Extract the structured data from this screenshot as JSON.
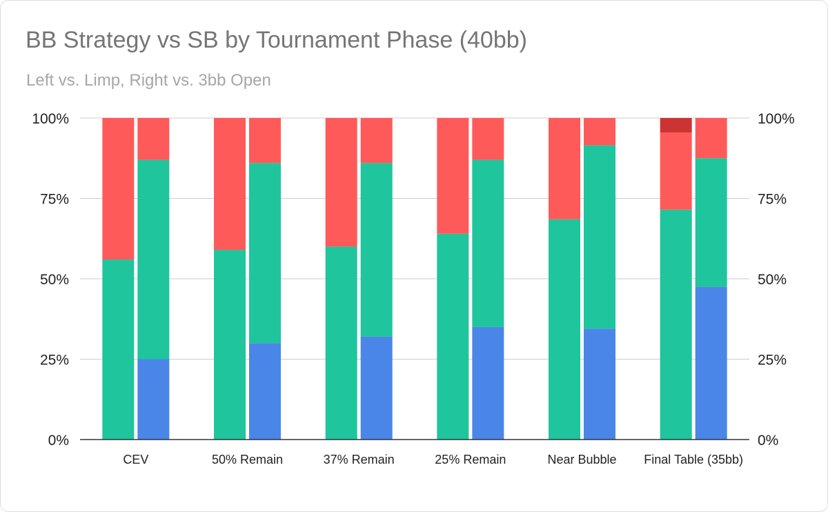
{
  "chart_data": {
    "type": "bar",
    "stacked": true,
    "title": "BB Strategy vs SB by Tournament Phase (40bb)",
    "subtitle": "Left vs. Limp, Right vs. 3bb Open",
    "categories": [
      "CEV",
      "50% Remain",
      "37% Remain",
      "25% Remain",
      "Near Bubble",
      "Final Table (35bb)"
    ],
    "ylim": [
      0,
      100
    ],
    "y_ticks": [
      "0%",
      "25%",
      "50%",
      "75%",
      "100%"
    ],
    "grid": true,
    "legend": "none",
    "colors": {
      "blue": "#4a86e8",
      "green": "#1fc59c",
      "red": "#ff5a5a",
      "darkred": "#cc3333"
    },
    "bars": {
      "left": {
        "stack": [
          {
            "values": [
              0,
              0,
              0,
              0,
              0,
              0
            ],
            "color": "blue"
          },
          {
            "values": [
              56,
              59,
              60,
              64,
              68.5,
              71.5
            ],
            "color": "green"
          },
          {
            "values": [
              44,
              41,
              40,
              36,
              31.5,
              24
            ],
            "color": "red"
          },
          {
            "values": [
              0,
              0,
              0,
              0,
              0,
              4.5
            ],
            "color": "darkred"
          }
        ]
      },
      "right": {
        "stack": [
          {
            "values": [
              25,
              30,
              32,
              35,
              34.5,
              47.5
            ],
            "color": "blue"
          },
          {
            "values": [
              62,
              56,
              54,
              52,
              57,
              40
            ],
            "color": "green"
          },
          {
            "values": [
              13,
              14,
              14,
              13,
              8.5,
              12.5
            ],
            "color": "red"
          }
        ]
      }
    }
  }
}
